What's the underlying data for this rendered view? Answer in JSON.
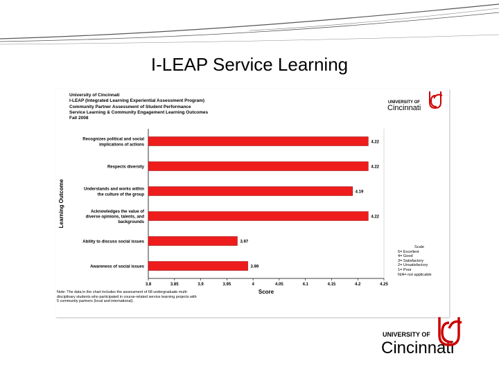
{
  "slide": {
    "title": "I-LEAP Service Learning"
  },
  "chart_header": {
    "lines": [
      "University of Cincinnati",
      "I-LEAP (Integrated Learning Experiential Assessment Program)",
      "Community Partner Assessment of Student Performance",
      "Service Learning & Community Engagement Learning Outcomes",
      "Fall 2008"
    ]
  },
  "logo_small": {
    "top": "UNIVERSITY OF",
    "bottom": "Cincinnati"
  },
  "logo_large": {
    "top": "UNIVERSITY OF",
    "bottom": "Cincinnati"
  },
  "legend": {
    "title": "Scale",
    "items": [
      "5= Excellent",
      "4= Good",
      "3= Satisfactory",
      "2= Unsatisfactory",
      "1= Poor",
      "N/A= not applicable"
    ]
  },
  "note": {
    "lines": [
      "Note: The data in the chart includes the assessment of 68 undergraduate multi-",
      "disciplinary students who participated in course-related service learning projects with",
      "5 community partners (local and international)."
    ]
  },
  "colors": {
    "bar": "#ee1c1c",
    "bar_stroke": "#8b0000",
    "accent": "#cc0000",
    "grid": "#c0c0c0",
    "deco_line": "#555555"
  },
  "chart_data": {
    "type": "bar",
    "orientation": "horizontal",
    "categories": [
      [
        "Recognizes political and social",
        "implications of actions"
      ],
      [
        "Respects diversity"
      ],
      [
        "Understands and works within",
        "the culture of the group"
      ],
      [
        "Acknowledges the value of",
        "diverse opinions, talents, and",
        "backgrounds"
      ],
      [
        "Ability to discuss social issues"
      ],
      [
        "Awareness of social issues"
      ]
    ],
    "values": [
      4.22,
      4.22,
      4.19,
      4.22,
      3.97,
      3.99
    ],
    "value_labels": [
      "4.22",
      "4.22",
      "4.19",
      "4.22",
      "3.97",
      "3.99"
    ],
    "xlim": [
      3.8,
      4.25
    ],
    "xticks": [
      "3.8",
      "3.85",
      "3.9",
      "3.95",
      "4",
      "4.05",
      "4.1",
      "4.15",
      "4.2",
      "4.25"
    ],
    "xlabel": "Score",
    "ylabel": "Learning Outcome",
    "grid": false,
    "legend_position": "right"
  }
}
